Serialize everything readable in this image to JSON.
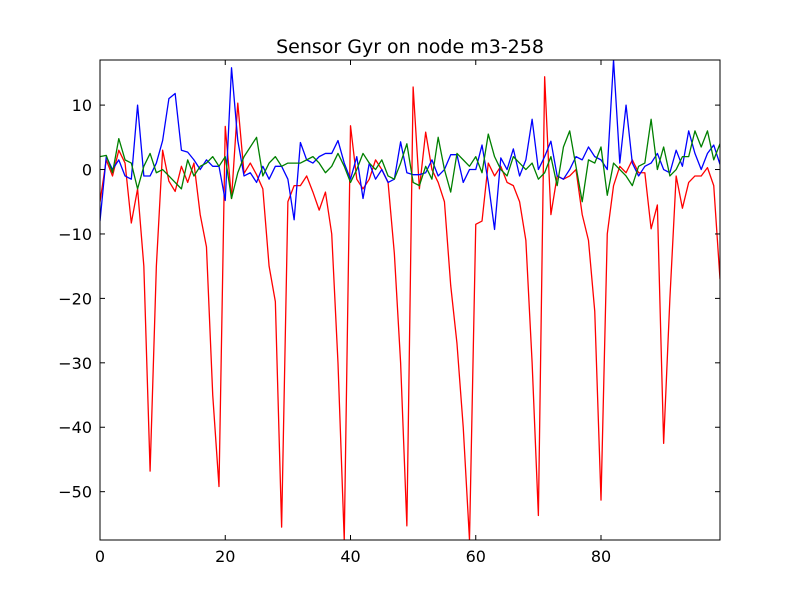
{
  "chart_data": {
    "type": "line",
    "title": "Sensor Gyr on node m3-258",
    "xlabel": "",
    "ylabel": "",
    "xlim": [
      0,
      99
    ],
    "ylim": [
      -57.5,
      17
    ],
    "x_ticks": [
      0,
      20,
      40,
      60,
      80
    ],
    "y_ticks": [
      10,
      0,
      -10,
      -20,
      -30,
      -40,
      -50
    ],
    "grid": false,
    "legend": "none",
    "series": [
      {
        "color": "#ff0000",
        "values": [
          -5.0,
          1.5,
          -1.0,
          3.0,
          1.0,
          -8.3,
          -3.0,
          -15.0,
          -46.8,
          -15.0,
          3.0,
          -1.8,
          -3.4,
          0.5,
          -2.0,
          1.0,
          -7.0,
          -12.0,
          -35.0,
          -49.2,
          6.7,
          -4.5,
          10.3,
          -0.6,
          1.0,
          -0.8,
          -3.0,
          -15.0,
          -20.5,
          -55.5,
          -5.0,
          -2.5,
          -2.5,
          -1.0,
          -3.5,
          -6.3,
          -3.5,
          -10.0,
          -30.0,
          -57.5,
          6.8,
          -1.5,
          -3.0,
          -1.5,
          1.5,
          0.0,
          -2.0,
          -13.0,
          -30.0,
          -55.3,
          12.8,
          -3.0,
          5.8,
          0.0,
          -2.0,
          -5.0,
          -18.0,
          -27.0,
          -40.0,
          -57.5,
          -8.5,
          -8.0,
          1.0,
          -1.0,
          0.5,
          -2.0,
          -2.5,
          -5.0,
          -11.0,
          -30.0,
          -53.7,
          14.4,
          -7.0,
          -1.0,
          -1.5,
          -1.0,
          0.0,
          -7.0,
          -11.0,
          -22.0,
          -51.3,
          -10.0,
          -2.5,
          0.5,
          -0.5,
          1.5,
          -0.5,
          -0.5,
          -9.2,
          -5.5,
          -42.5,
          -20.0,
          -1.0,
          -6.0,
          -2.0,
          -1.0,
          -1.0,
          0.3,
          -2.5,
          -17.0
        ]
      },
      {
        "color": "#0000ff",
        "values": [
          -8.0,
          2.0,
          0.0,
          1.5,
          -1.0,
          -1.5,
          10.0,
          -1.0,
          -1.0,
          1.0,
          4.5,
          11.0,
          11.8,
          3.0,
          2.7,
          1.5,
          0.0,
          1.5,
          0.5,
          0.5,
          -4.8,
          15.8,
          4.5,
          -1.0,
          -0.5,
          -2.0,
          0.5,
          -1.5,
          0.5,
          0.5,
          -1.5,
          -7.8,
          4.2,
          1.5,
          1.0,
          2.0,
          2.5,
          2.5,
          4.5,
          1.0,
          -1.5,
          2.0,
          -4.5,
          1.0,
          -1.5,
          0.0,
          -2.0,
          -1.5,
          4.3,
          -0.5,
          -0.8,
          -0.8,
          -0.5,
          1.5,
          -1.0,
          0.0,
          2.3,
          2.3,
          -2.0,
          0.0,
          0.0,
          3.8,
          -2.0,
          -9.3,
          1.8,
          0.0,
          3.2,
          -1.0,
          1.5,
          7.8,
          0.0,
          2.0,
          4.4,
          -1.0,
          -1.5,
          0.0,
          2.0,
          1.5,
          3.5,
          2.0,
          1.5,
          0.0,
          17.0,
          1.0,
          10.0,
          1.0,
          -1.0,
          0.5,
          1.0,
          2.5,
          0.0,
          -0.5,
          3.0,
          0.5,
          6.0,
          2.5,
          0.0,
          2.5,
          3.8,
          0.8
        ]
      },
      {
        "color": "#008000",
        "values": [
          2.0,
          2.2,
          -0.5,
          4.8,
          1.5,
          1.0,
          -3.0,
          0.5,
          2.5,
          -0.5,
          0.0,
          -1.0,
          -2.0,
          -3.0,
          1.5,
          -1.0,
          0.5,
          1.0,
          2.0,
          0.5,
          2.0,
          -4.5,
          -0.5,
          2.0,
          3.5,
          5.0,
          -1.0,
          1.0,
          2.0,
          0.5,
          1.0,
          1.0,
          1.0,
          1.5,
          2.0,
          1.0,
          -0.5,
          0.5,
          2.5,
          0.5,
          -2.0,
          0.0,
          2.5,
          1.0,
          0.0,
          1.5,
          -1.0,
          -1.5,
          1.0,
          4.0,
          -2.0,
          -2.5,
          0.5,
          -1.5,
          5.0,
          0.0,
          -3.5,
          2.5,
          1.5,
          0.5,
          2.0,
          -0.5,
          5.5,
          2.0,
          0.0,
          -1.0,
          2.0,
          1.0,
          0.0,
          1.0,
          -1.5,
          -0.5,
          2.0,
          -2.5,
          3.5,
          6.0,
          0.5,
          -5.0,
          1.5,
          1.0,
          3.5,
          -4.0,
          1.0,
          0.0,
          -1.0,
          -2.5,
          0.5,
          1.0,
          7.8,
          0.0,
          3.5,
          -1.0,
          0.0,
          2.0,
          2.0,
          6.0,
          3.5,
          6.0,
          1.5,
          4.0
        ]
      }
    ]
  }
}
